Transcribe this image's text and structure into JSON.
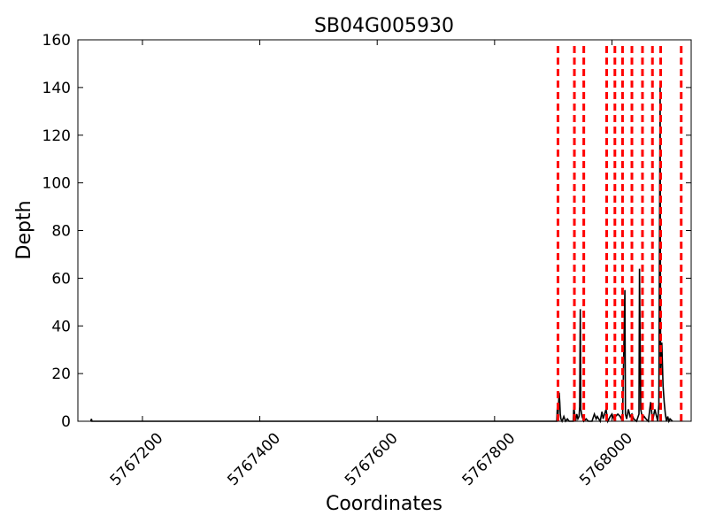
{
  "chart_data": {
    "type": "line",
    "title": "SB04G005930",
    "xlabel": "Coordinates",
    "ylabel": "Depth",
    "xlim": [
      5767090,
      5768135
    ],
    "ylim": [
      0,
      160
    ],
    "xticks": [
      5767200,
      5767400,
      5767600,
      5767800,
      5768000
    ],
    "yticks": [
      0,
      20,
      40,
      60,
      80,
      100,
      120,
      140,
      160
    ],
    "grid": false,
    "legend": "none",
    "colors": {
      "depth": "#000000",
      "markers": "#ff0000"
    },
    "series": [
      {
        "x": [
          5767112,
          5767113,
          5767114,
          5767906,
          5767907,
          5767908,
          5767910,
          5767911,
          5767912,
          5767913,
          5767915,
          5767918,
          5767921,
          5767924,
          5767927,
          5767934,
          5767935,
          5767936,
          5767937,
          5767938,
          5767940,
          5767942,
          5767944,
          5767945,
          5767946,
          5767947,
          5767949,
          5767952,
          5767956,
          5767960,
          5767966,
          5767970,
          5767973,
          5767975,
          5767980,
          5767983,
          5767985,
          5767990,
          5767993,
          5767997,
          5768000,
          5768003,
          5768006,
          5768010,
          5768014,
          5768018,
          5768022,
          5768023,
          5768025,
          5768028,
          5768031,
          5768034,
          5768037,
          5768042,
          5768046,
          5768047,
          5768049,
          5768052,
          5768055,
          5768058,
          5768062,
          5768064,
          5768066,
          5768068,
          5768070,
          5768073,
          5768076,
          5768078,
          5768080,
          5768082,
          5768083,
          5768085,
          5768087,
          5768089,
          5768091,
          5768093,
          5768095,
          5768097,
          5768099,
          5768103
        ],
        "y": [
          0,
          1,
          0,
          0,
          6,
          2,
          12,
          8,
          3,
          1,
          0,
          2,
          0,
          1,
          0,
          0,
          6,
          4,
          2,
          0,
          3,
          1,
          2,
          6,
          47,
          5,
          2,
          0,
          1,
          0,
          0,
          3,
          1,
          2,
          0,
          4,
          1,
          5,
          0,
          2,
          3,
          1,
          2,
          3,
          2,
          0,
          55,
          3,
          1,
          5,
          2,
          3,
          1,
          0,
          3,
          64,
          5,
          1,
          2,
          1,
          0,
          4,
          8,
          3,
          1,
          5,
          2,
          0,
          7,
          141,
          20,
          33,
          15,
          8,
          3,
          0,
          2,
          0,
          1,
          0
        ]
      }
    ],
    "markers_x": [
      5767908,
      5767936,
      5767952,
      5767991,
      5768005,
      5768018,
      5768034,
      5768052,
      5768069,
      5768083,
      5768118
    ]
  }
}
